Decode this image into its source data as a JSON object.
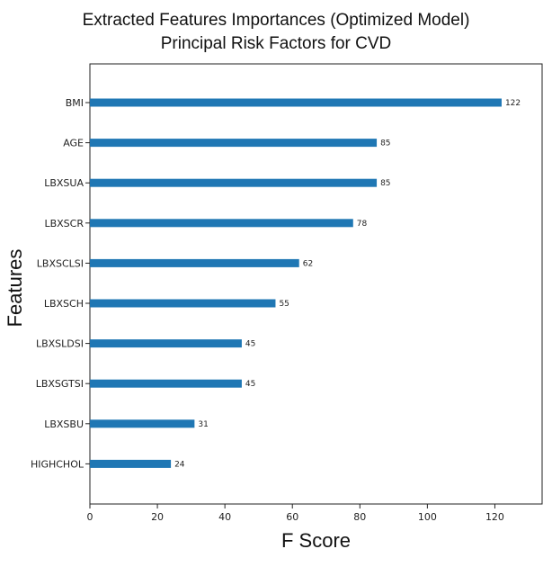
{
  "chart_data": {
    "type": "bar",
    "orientation": "horizontal",
    "title": "Extracted Features Importances (Optimized Model)",
    "subtitle": "Principal Risk Factors for CVD",
    "xlabel": "F Score",
    "ylabel": "Features",
    "categories": [
      "BMI",
      "AGE",
      "LBXSUA",
      "LBXSCR",
      "LBXSCLSI",
      "LBXSCH",
      "LBXSLDSI",
      "LBXSGTSI",
      "LBXSBU",
      "HIGHCHOL"
    ],
    "values": [
      122,
      85,
      85,
      78,
      62,
      55,
      45,
      45,
      31,
      24
    ],
    "xlim": [
      0,
      134
    ],
    "xticks": [
      0,
      20,
      40,
      60,
      80,
      100,
      120
    ],
    "bar_color": "#1f77b4",
    "grid": false,
    "legend": "none",
    "data_labels": true
  }
}
